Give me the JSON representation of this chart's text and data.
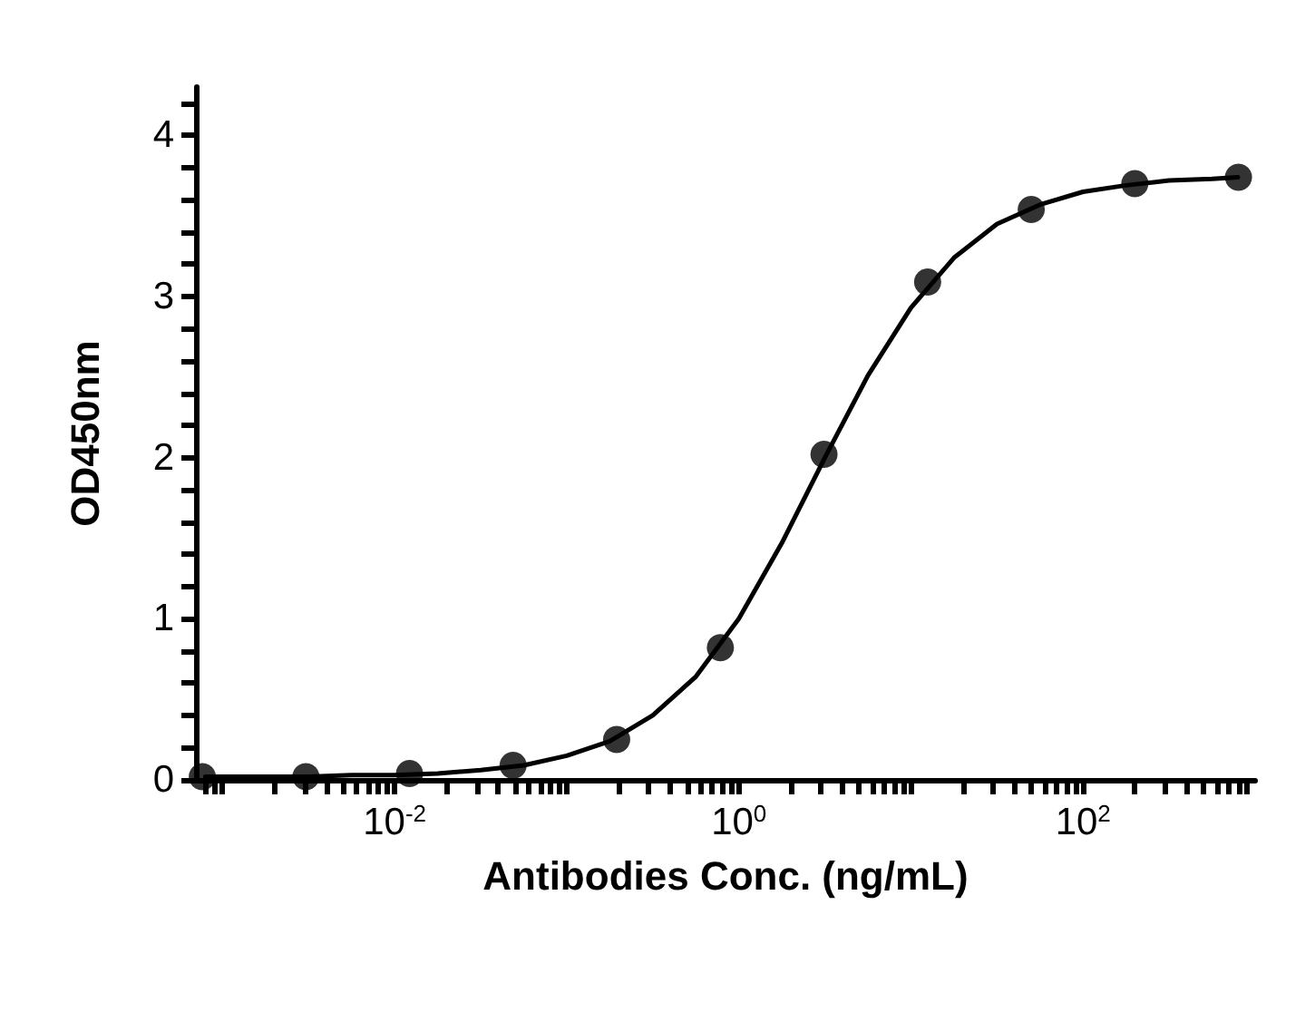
{
  "chart_data": {
    "type": "scatter",
    "xlabel": "Antibodies Conc. (ng/mL)",
    "ylabel": "OD450nm",
    "log": "x",
    "grid": false,
    "marker": "circle",
    "xlim": [
      0.0007,
      1000
    ],
    "ylim": [
      0,
      4.3
    ],
    "xticks": [
      {
        "value": 0.0008,
        "label": null
      },
      {
        "value": 0.0009,
        "label": null
      },
      {
        "value": 0.001,
        "label": null
      },
      {
        "value": 0.002,
        "label": null
      },
      {
        "value": 0.003,
        "label": null
      },
      {
        "value": 0.004,
        "label": null
      },
      {
        "value": 0.005,
        "label": null
      },
      {
        "value": 0.006,
        "label": null
      },
      {
        "value": 0.007,
        "label": null
      },
      {
        "value": 0.008,
        "label": null
      },
      {
        "value": 0.009,
        "label": null
      },
      {
        "value": 0.01,
        "label": "10$^{-2}$"
      },
      {
        "value": 0.02,
        "label": null
      },
      {
        "value": 0.03,
        "label": null
      },
      {
        "value": 0.04,
        "label": null
      },
      {
        "value": 0.05,
        "label": null
      },
      {
        "value": 0.06,
        "label": null
      },
      {
        "value": 0.07,
        "label": null
      },
      {
        "value": 0.08,
        "label": null
      },
      {
        "value": 0.09,
        "label": null
      },
      {
        "value": 0.1,
        "label": null
      },
      {
        "value": 0.2,
        "label": null
      },
      {
        "value": 0.3,
        "label": null
      },
      {
        "value": 0.4,
        "label": null
      },
      {
        "value": 0.5,
        "label": null
      },
      {
        "value": 0.6,
        "label": null
      },
      {
        "value": 0.7,
        "label": null
      },
      {
        "value": 0.8,
        "label": null
      },
      {
        "value": 0.9,
        "label": null
      },
      {
        "value": 1,
        "label": "10$^{0}$"
      },
      {
        "value": 2,
        "label": null
      },
      {
        "value": 3,
        "label": null
      },
      {
        "value": 4,
        "label": null
      },
      {
        "value": 5,
        "label": null
      },
      {
        "value": 6,
        "label": null
      },
      {
        "value": 7,
        "label": null
      },
      {
        "value": 8,
        "label": null
      },
      {
        "value": 9,
        "label": null
      },
      {
        "value": 10,
        "label": null
      },
      {
        "value": 20,
        "label": null
      },
      {
        "value": 30,
        "label": null
      },
      {
        "value": 40,
        "label": null
      },
      {
        "value": 50,
        "label": null
      },
      {
        "value": 60,
        "label": null
      },
      {
        "value": 70,
        "label": null
      },
      {
        "value": 80,
        "label": null
      },
      {
        "value": 90,
        "label": null
      },
      {
        "value": 100,
        "label": "10$^{2}$"
      },
      {
        "value": 200,
        "label": null
      },
      {
        "value": 300,
        "label": null
      },
      {
        "value": 400,
        "label": null
      },
      {
        "value": 500,
        "label": null
      },
      {
        "value": 600,
        "label": null
      },
      {
        "value": 700,
        "label": null
      },
      {
        "value": 800,
        "label": null
      },
      {
        "value": 900,
        "label": null
      }
    ],
    "yticks": [
      0,
      {
        "value": 0.2,
        "label": null
      },
      {
        "value": 0.4,
        "label": null
      },
      {
        "value": 0.6,
        "label": null
      },
      {
        "value": 0.8,
        "label": null
      },
      1,
      {
        "value": 1.2,
        "label": null
      },
      {
        "value": 1.4,
        "label": null
      },
      {
        "value": 1.6,
        "label": null
      },
      {
        "value": 1.8,
        "label": null
      },
      2,
      {
        "value": 2.2,
        "label": null
      },
      {
        "value": 2.4,
        "label": null
      },
      {
        "value": 2.6,
        "label": null
      },
      {
        "value": 2.8,
        "label": null
      },
      3,
      {
        "value": 3.2,
        "label": null
      },
      {
        "value": 3.4,
        "label": null
      },
      {
        "value": 3.6,
        "label": null
      },
      {
        "value": 3.8,
        "label": null
      },
      4,
      {
        "value": 4.2,
        "label": null
      }
    ],
    "series": [
      {
        "color": "#000000",
        "x": [
          0.000763,
          0.00305,
          0.0122,
          0.0488,
          0.195,
          0.781,
          3.125,
          12.5,
          50,
          200,
          800
        ],
        "values": [
          0.02,
          0.02,
          0.04,
          0.09,
          0.25,
          0.82,
          2.02,
          3.09,
          3.54,
          3.7,
          3.74
        ]
      },
      {
        "type": "line",
        "color": "#000000",
        "marker": "none",
        "line_style": "solid",
        "x": [
          0.000794,
          0.00178,
          0.00316,
          0.00562,
          0.01,
          0.0178,
          0.0316,
          0.0562,
          0.1,
          0.178,
          0.316,
          0.562,
          1,
          1.778,
          3.162,
          5.623,
          10,
          17.78,
          31.62,
          56.23,
          100,
          177.8,
          316.2,
          562.3,
          794
        ],
        "values": [
          0.02,
          0.02,
          0.02,
          0.03,
          0.03,
          0.04,
          0.06,
          0.09,
          0.15,
          0.24,
          0.4,
          0.64,
          1.0,
          1.47,
          2.0,
          2.51,
          2.93,
          3.24,
          3.45,
          3.57,
          3.65,
          3.69,
          3.72,
          3.73,
          3.74
        ]
      }
    ]
  }
}
